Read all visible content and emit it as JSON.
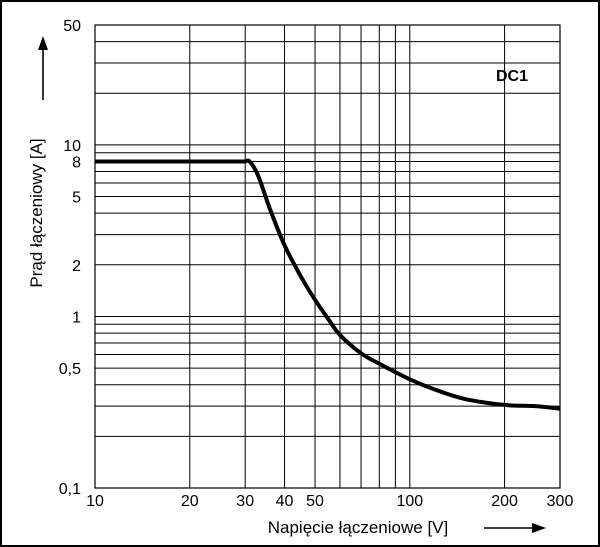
{
  "chart_data": {
    "type": "line",
    "title": "",
    "xlabel": "Napięcie łączeniowe [V]",
    "ylabel": "Prąd łączeniowy [A]",
    "xscale": "log",
    "yscale": "log",
    "xlim": [
      10,
      300
    ],
    "ylim": [
      0.1,
      50
    ],
    "grid": true,
    "x_ticks": [
      {
        "value": 10,
        "label": "10"
      },
      {
        "value": 20,
        "label": "20"
      },
      {
        "value": 30,
        "label": "30"
      },
      {
        "value": 40,
        "label": "40"
      },
      {
        "value": 50,
        "label": "50"
      },
      {
        "value": 100,
        "label": "100"
      },
      {
        "value": 200,
        "label": "200"
      },
      {
        "value": 300,
        "label": "300"
      }
    ],
    "y_ticks": [
      {
        "value": 0.1,
        "label": "0,1"
      },
      {
        "value": 0.5,
        "label": "0,5"
      },
      {
        "value": 1,
        "label": "1"
      },
      {
        "value": 2,
        "label": "2"
      },
      {
        "value": 5,
        "label": "5"
      },
      {
        "value": 8,
        "label": "8"
      },
      {
        "value": 10,
        "label": "10"
      },
      {
        "value": 50,
        "label": "50"
      }
    ],
    "series": [
      {
        "name": "DC1",
        "x": [
          10,
          30,
          31,
          33,
          36,
          40,
          45,
          50,
          55,
          60,
          70,
          80,
          100,
          120,
          150,
          200,
          250,
          300
        ],
        "y": [
          8,
          8,
          8,
          6.6,
          4.2,
          2.6,
          1.72,
          1.25,
          0.97,
          0.78,
          0.61,
          0.53,
          0.43,
          0.375,
          0.33,
          0.305,
          0.3,
          0.29
        ]
      }
    ],
    "legend": {
      "label": "DC1",
      "position": "top-right"
    }
  }
}
